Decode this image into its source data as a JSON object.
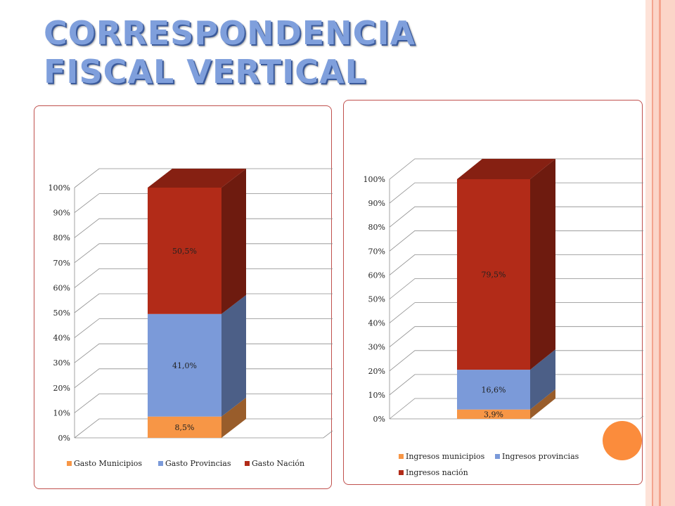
{
  "title": {
    "line1": "CORRESPONDENCIA",
    "line2": "FISCAL VERTICAL"
  },
  "colors": {
    "stripe_light": "#fbd5c8",
    "stripe_dark": "#f4a48e",
    "title": "#7f9fdc",
    "orange": "#f79646",
    "blue": "#7b9ad9",
    "red": "#b22b18",
    "circle": "#fb8c3c",
    "panel_border": "#c0504d"
  },
  "chart_data": [
    {
      "type": "bar",
      "stacked": true,
      "three_d": true,
      "categories": [
        ""
      ],
      "series": [
        {
          "name": "Gasto Municipios",
          "values": [
            8.5
          ],
          "label": "8,5%",
          "color": "#f79646"
        },
        {
          "name": "Gasto Provincias",
          "values": [
            41.0
          ],
          "label": "41,0%",
          "color": "#7b9ad9"
        },
        {
          "name": "Gasto Nación",
          "values": [
            50.5
          ],
          "label": "50,5%",
          "color": "#b22b18"
        }
      ],
      "yticks": [
        "0%",
        "10%",
        "20%",
        "30%",
        "40%",
        "50%",
        "60%",
        "70%",
        "80%",
        "90%",
        "100%"
      ],
      "ylim": [
        0,
        100
      ],
      "grid": true,
      "legend": "bottom"
    },
    {
      "type": "bar",
      "stacked": true,
      "three_d": true,
      "categories": [
        ""
      ],
      "series": [
        {
          "name": "Ingresos municipios",
          "values": [
            3.9
          ],
          "label": "3,9%",
          "color": "#f79646"
        },
        {
          "name": "Ingresos provincias",
          "values": [
            16.6
          ],
          "label": "16,6%",
          "color": "#7b9ad9"
        },
        {
          "name": "Ingresos nación",
          "values": [
            79.5
          ],
          "label": "79,5%",
          "color": "#b22b18"
        }
      ],
      "yticks": [
        "0%",
        "10%",
        "20%",
        "30%",
        "40%",
        "50%",
        "60%",
        "70%",
        "80%",
        "90%",
        "100%"
      ],
      "ylim": [
        0,
        100
      ],
      "grid": true,
      "legend": "bottom"
    }
  ]
}
